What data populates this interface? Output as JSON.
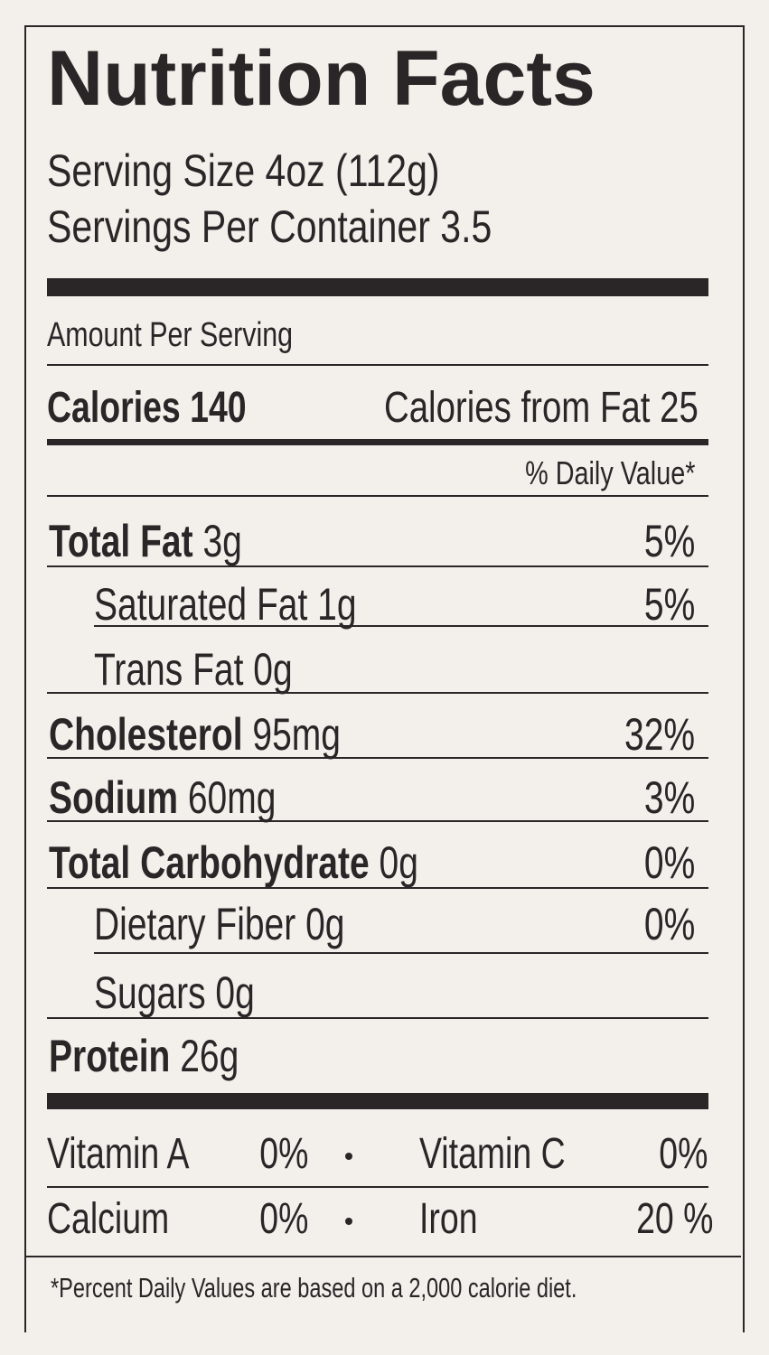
{
  "title": "Nutrition Facts",
  "serving_size": "Serving Size 4oz (112g)",
  "servings_per_container": "Servings Per Container 3.5",
  "amount_per_serving": "Amount Per Serving",
  "calories": {
    "label": "Calories 140",
    "from_fat": "Calories from Fat 25"
  },
  "daily_value_header": "% Daily Value*",
  "nutrients": [
    {
      "name": "Total Fat",
      "amount": "3g",
      "dv": "5%"
    },
    {
      "name": "Saturated Fat",
      "amount": "1g",
      "dv": "5%"
    },
    {
      "name": "Trans Fat",
      "amount": "0g"
    },
    {
      "name": "Cholesterol",
      "amount": "95mg",
      "dv": "32%"
    },
    {
      "name": "Sodium",
      "amount": "60mg",
      "dv": "3%"
    },
    {
      "name": "Total Carbohydrate",
      "amount": "0g",
      "dv": "0%"
    },
    {
      "name": "Dietary Fiber",
      "amount": "0g",
      "dv": "0%"
    },
    {
      "name": "Sugars",
      "amount": "0g"
    },
    {
      "name": "Protein",
      "amount": "26g"
    }
  ],
  "vitamins": [
    {
      "name": "Vitamin A",
      "dv": "0%"
    },
    {
      "name": "Vitamin C",
      "dv": "0%"
    },
    {
      "name": "Calcium",
      "dv": "0%"
    },
    {
      "name": "Iron",
      "dv": "20 %"
    }
  ],
  "footnote": "*Percent Daily Values are based on a 2,000 calorie diet."
}
